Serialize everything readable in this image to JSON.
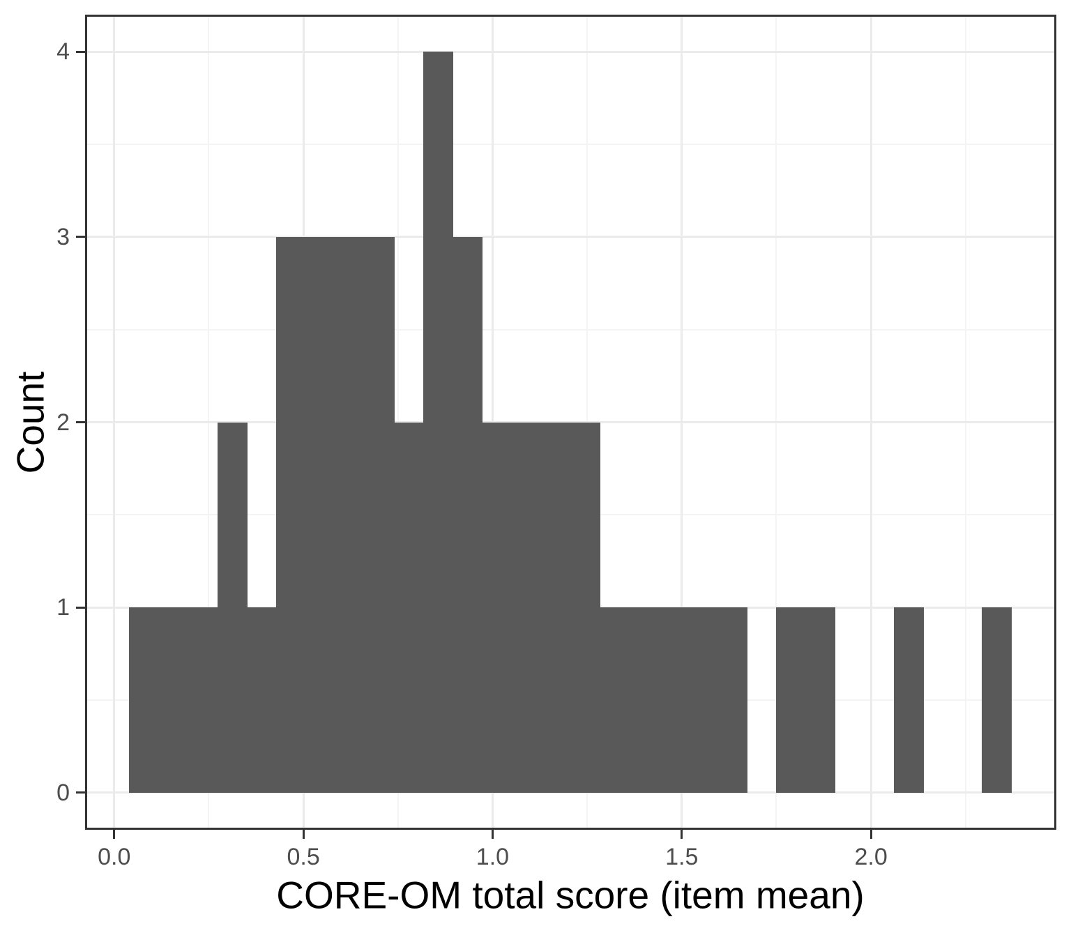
{
  "chart_data": {
    "type": "bar",
    "subtype": "histogram",
    "title": "",
    "xlabel": "CORE-OM total score (item mean)",
    "ylabel": "Count",
    "bins": {
      "start": 0.04,
      "width": 0.0777,
      "counts": [
        1,
        1,
        1,
        2,
        1,
        3,
        3,
        3,
        3,
        2,
        4,
        3,
        2,
        2,
        2,
        2,
        1,
        1,
        1,
        1,
        1,
        0,
        1,
        1,
        0,
        0,
        1,
        0,
        0,
        1
      ]
    },
    "x_axis": {
      "tick_labels": [
        "0.0",
        "0.5",
        "1.0",
        "1.5",
        "2.0"
      ],
      "tick_values": [
        0,
        0.5,
        1.0,
        1.5,
        2.0
      ],
      "minor_tick_values": [
        0.25,
        0.75,
        1.25,
        1.75,
        2.25
      ],
      "range": [
        -0.077,
        2.49
      ]
    },
    "y_axis": {
      "tick_labels": [
        "0",
        "1",
        "2",
        "3",
        "4"
      ],
      "tick_values": [
        0,
        1,
        2,
        3,
        4
      ],
      "minor_tick_values": [
        0.5,
        1.5,
        2.5,
        3.5
      ],
      "range": [
        -0.2,
        4.2
      ]
    },
    "grid": "major and minor, both axes",
    "legend_position": "none",
    "colors": {
      "bar_fill": "#595959",
      "panel_background": "#ffffff",
      "panel_border": "#333333",
      "grid_major": "#ebebeb",
      "grid_minor": "#f4f4f4",
      "tick_mark": "#333333",
      "tick_label": "#4d4d4d",
      "axis_title": "#000000"
    }
  }
}
